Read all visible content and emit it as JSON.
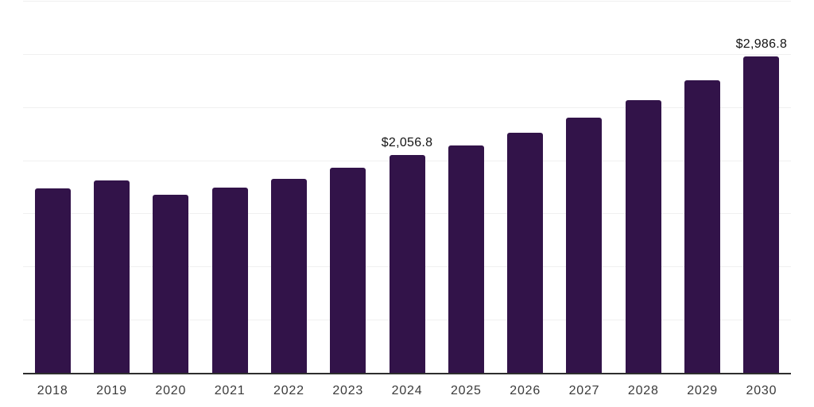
{
  "chart_data": {
    "type": "bar",
    "title": "",
    "xlabel": "",
    "ylabel": "",
    "categories": [
      "2018",
      "2019",
      "2020",
      "2021",
      "2022",
      "2023",
      "2024",
      "2025",
      "2026",
      "2027",
      "2028",
      "2029",
      "2030"
    ],
    "values": [
      1745,
      1820,
      1680,
      1750,
      1830,
      1935,
      2056.8,
      2150,
      2265,
      2410,
      2575,
      2760,
      2986.8
    ],
    "point_labels": [
      "",
      "",
      "",
      "",
      "",
      "",
      "$2,056.8",
      "",
      "",
      "",
      "",
      "",
      "$2,986.8"
    ],
    "ylim": [
      0,
      3500
    ],
    "gridline_step": 500,
    "grid": true,
    "legend": false,
    "bar_color": "#321349",
    "gridline_color": "#f0f0f0",
    "axis_color": "#2e2e2e",
    "value_label_color": "#141414",
    "tick_label_color": "#3a3a3a",
    "background_color": "#ffffff"
  }
}
